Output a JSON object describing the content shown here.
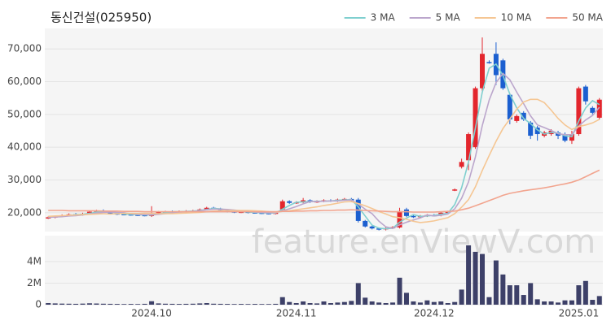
{
  "chart_data": [
    {
      "type": "candlestick",
      "title": "동신건설(025950)",
      "watermark": "feature.enViewV.com",
      "up_color": "#e3262d",
      "down_color": "#1b5fd0",
      "legend": "top-right",
      "grid": true,
      "ylim": [
        14250,
        76250
      ],
      "yticks": [
        {
          "value": 20000,
          "label": "20,000"
        },
        {
          "value": 30000,
          "label": "30,000"
        },
        {
          "value": 40000,
          "label": "40,000"
        },
        {
          "value": 50000,
          "label": "50,000"
        },
        {
          "value": 60000,
          "label": "60,000"
        },
        {
          "value": 70000,
          "label": "70,000"
        }
      ],
      "open": [
        18400,
        18600,
        18900,
        19200,
        19600,
        19400,
        19800,
        20300,
        20700,
        20400,
        19800,
        19600,
        19500,
        19400,
        19300,
        19000,
        19900,
        20200,
        20400,
        20300,
        20400,
        20500,
        20700,
        21000,
        21500,
        21200,
        20800,
        20400,
        20200,
        20300,
        20100,
        20000,
        19900,
        19800,
        21000,
        23500,
        23000,
        23200,
        23800,
        23300,
        23500,
        23800,
        23600,
        24000,
        24200,
        24000,
        17500,
        15800,
        15200,
        14900,
        15300,
        15500,
        21000,
        19000,
        18700,
        19000,
        19300,
        19200,
        20000,
        26900,
        34000,
        36000,
        40000,
        58000,
        66000,
        68500,
        66500,
        56000,
        48000,
        50500,
        47500,
        46000,
        43500,
        44000,
        44500,
        44000,
        42000,
        44000,
        58500,
        52000,
        49000
      ],
      "high": [
        18900,
        19200,
        19500,
        19800,
        19900,
        20000,
        20600,
        20900,
        21000,
        20700,
        20100,
        19900,
        19800,
        19700,
        19600,
        22000,
        20500,
        20600,
        20700,
        20700,
        20800,
        20900,
        21300,
        21800,
        21800,
        21500,
        21100,
        20700,
        20600,
        20600,
        20400,
        20300,
        20200,
        20300,
        24000,
        23800,
        23500,
        24500,
        24100,
        23800,
        24100,
        24100,
        24300,
        24500,
        24500,
        24500,
        17800,
        16100,
        15500,
        15600,
        15900,
        21500,
        21500,
        19300,
        19300,
        19600,
        19600,
        20300,
        20600,
        27400,
        36500,
        44500,
        58500,
        73500,
        66500,
        72000,
        67000,
        56500,
        50000,
        51000,
        48000,
        46500,
        45000,
        45500,
        45000,
        44500,
        45000,
        58500,
        59000,
        52500,
        55000
      ],
      "low": [
        18100,
        18300,
        18600,
        18900,
        19100,
        19100,
        19500,
        20000,
        20100,
        19500,
        19300,
        19200,
        19100,
        19000,
        18900,
        18700,
        19600,
        19900,
        20000,
        20000,
        20100,
        20200,
        20400,
        20700,
        21000,
        20500,
        20100,
        19900,
        19900,
        19800,
        19700,
        19600,
        19500,
        19500,
        20700,
        22700,
        22700,
        22900,
        23000,
        23000,
        23200,
        23300,
        23300,
        23700,
        23500,
        17000,
        15500,
        14900,
        14600,
        14600,
        15000,
        15200,
        18700,
        18400,
        18400,
        18700,
        18900,
        18900,
        19700,
        26600,
        33500,
        33000,
        39500,
        56500,
        65500,
        59000,
        57500,
        47000,
        47500,
        48000,
        42500,
        42000,
        43000,
        43500,
        42500,
        41500,
        41000,
        43500,
        53000,
        50000,
        48500
      ],
      "close": [
        18600,
        18900,
        19200,
        19500,
        19400,
        19700,
        20300,
        20600,
        20400,
        19800,
        19600,
        19500,
        19400,
        19300,
        19200,
        19400,
        20200,
        20300,
        20300,
        20400,
        20500,
        20600,
        21000,
        21500,
        21300,
        20800,
        20400,
        20200,
        20300,
        20100,
        20000,
        19900,
        19800,
        20000,
        23500,
        23000,
        23200,
        23800,
        23300,
        23500,
        23800,
        23600,
        24000,
        24200,
        23800,
        17500,
        15800,
        15200,
        14900,
        15300,
        15600,
        20500,
        19000,
        18700,
        19000,
        19300,
        19200,
        20000,
        20300,
        27100,
        35500,
        44000,
        58000,
        68500,
        65800,
        62000,
        58000,
        48500,
        49500,
        48500,
        43500,
        44000,
        44500,
        45000,
        43500,
        42000,
        44000,
        58000,
        54000,
        50500,
        54500
      ],
      "series": [
        {
          "name": "3 MA",
          "color": "#7fcfcf",
          "values": [
            18600,
            18800,
            18900,
            19200,
            19400,
            19500,
            19800,
            20200,
            20400,
            20300,
            19900,
            19600,
            19500,
            19400,
            19300,
            19300,
            19600,
            20000,
            20300,
            20300,
            20400,
            20500,
            20700,
            21000,
            21300,
            21200,
            20800,
            20500,
            20300,
            20200,
            20100,
            20000,
            19900,
            19900,
            21100,
            22200,
            23200,
            23300,
            23400,
            23500,
            23500,
            23600,
            23800,
            23900,
            24000,
            21800,
            19000,
            16200,
            15300,
            15100,
            15300,
            17100,
            18400,
            19400,
            18900,
            19000,
            19200,
            19500,
            19800,
            22500,
            27600,
            35500,
            45800,
            56800,
            64100,
            65400,
            61900,
            56200,
            52000,
            48800,
            47200,
            45300,
            44000,
            44500,
            44300,
            43500,
            43200,
            48000,
            52000,
            54200,
            53000
          ]
        },
        {
          "name": "5 MA",
          "color": "#bba6cc",
          "values": [
            18600,
            18700,
            18800,
            19000,
            19100,
            19300,
            19600,
            19900,
            20100,
            20200,
            20100,
            20000,
            19700,
            19500,
            19400,
            19400,
            19500,
            19700,
            19900,
            20100,
            20300,
            20400,
            20600,
            20900,
            21100,
            21100,
            21000,
            20800,
            20600,
            20400,
            20200,
            20100,
            20000,
            20000,
            20600,
            21200,
            21900,
            22700,
            23400,
            23400,
            23500,
            23600,
            23600,
            23800,
            23900,
            22600,
            21100,
            19700,
            17400,
            15700,
            15200,
            16300,
            17100,
            17800,
            18400,
            19300,
            19000,
            19200,
            19600,
            21200,
            24400,
            29400,
            37000,
            46600,
            54400,
            59700,
            62500,
            60600,
            56800,
            53300,
            49600,
            46800,
            46000,
            45100,
            44100,
            43800,
            43800,
            46500,
            48300,
            49700,
            52200
          ]
        },
        {
          "name": "10 MA",
          "color": "#f5c693",
          "values": [
            18900,
            19000,
            19100,
            19200,
            19300,
            19400,
            19500,
            19600,
            19700,
            19600,
            19700,
            19800,
            19800,
            19800,
            19800,
            19800,
            19700,
            19700,
            19700,
            19800,
            19900,
            20000,
            20100,
            20300,
            20500,
            20600,
            20700,
            20700,
            20700,
            20700,
            20600,
            20500,
            20300,
            20200,
            20400,
            20600,
            20900,
            21200,
            21500,
            21800,
            22200,
            22500,
            22900,
            23300,
            23400,
            22800,
            22100,
            21300,
            20400,
            19600,
            18800,
            18500,
            18000,
            17400,
            17000,
            17200,
            17500,
            18000,
            18500,
            19700,
            21700,
            24000,
            27900,
            32900,
            37500,
            41800,
            45700,
            48600,
            51600,
            53800,
            54600,
            54600,
            53600,
            51300,
            48800,
            46800,
            45400,
            46300,
            46800,
            47400,
            48500
          ]
        },
        {
          "name": "50 MA",
          "color": "#f2a48e",
          "values": [
            20700,
            20700,
            20700,
            20600,
            20600,
            20600,
            20600,
            20600,
            20500,
            20500,
            20500,
            20400,
            20400,
            20400,
            20300,
            20300,
            20300,
            20300,
            20300,
            20300,
            20300,
            20300,
            20300,
            20300,
            20300,
            20300,
            20300,
            20300,
            20300,
            20300,
            20300,
            20300,
            20300,
            20300,
            20400,
            20400,
            20500,
            20500,
            20600,
            20600,
            20700,
            20700,
            20800,
            20800,
            20900,
            20800,
            20700,
            20600,
            20500,
            20400,
            20300,
            20300,
            20300,
            20200,
            20200,
            20200,
            20200,
            20300,
            20400,
            20500,
            20900,
            21400,
            22100,
            22900,
            23700,
            24500,
            25300,
            25900,
            26300,
            26700,
            27000,
            27300,
            27600,
            28000,
            28400,
            28800,
            29300,
            30000,
            31000,
            32000,
            33000
          ]
        }
      ]
    },
    {
      "type": "bar",
      "color": "#3d4068",
      "grid": true,
      "categories": [
        null,
        null,
        null,
        null,
        null,
        null,
        null,
        null,
        null,
        null,
        null,
        null,
        null,
        null,
        null,
        "2024.10",
        null,
        null,
        null,
        null,
        null,
        null,
        null,
        null,
        null,
        null,
        null,
        null,
        null,
        null,
        null,
        null,
        null,
        null,
        null,
        null,
        "2024.11",
        null,
        null,
        null,
        null,
        null,
        null,
        null,
        null,
        null,
        null,
        null,
        null,
        null,
        null,
        null,
        null,
        null,
        null,
        null,
        "2024.12",
        null,
        null,
        null,
        null,
        null,
        null,
        null,
        null,
        null,
        null,
        null,
        null,
        null,
        null,
        null,
        null,
        null,
        null,
        null,
        null,
        "2025.01",
        null,
        null,
        null
      ],
      "ylim": [
        0,
        6400000
      ],
      "yticks": [
        0,
        {
          "value": 2000000,
          "label": "2M"
        },
        {
          "value": 4000000,
          "label": "4M"
        }
      ],
      "values": [
        150000,
        120000,
        100000,
        90000,
        80000,
        100000,
        130000,
        110000,
        90000,
        80000,
        70000,
        60000,
        70000,
        60000,
        80000,
        320000,
        120000,
        90000,
        80000,
        70000,
        80000,
        90000,
        120000,
        150000,
        90000,
        80000,
        70000,
        60000,
        70000,
        60000,
        70000,
        60000,
        60000,
        80000,
        700000,
        250000,
        150000,
        300000,
        150000,
        120000,
        300000,
        150000,
        200000,
        250000,
        350000,
        2000000,
        650000,
        300000,
        200000,
        150000,
        200000,
        2500000,
        1100000,
        300000,
        200000,
        400000,
        250000,
        300000,
        150000,
        250000,
        1400000,
        5500000,
        4900000,
        4700000,
        700000,
        4100000,
        2800000,
        1800000,
        1800000,
        900000,
        2000000,
        500000,
        300000,
        300000,
        200000,
        400000,
        400000,
        1800000,
        2200000,
        450000,
        800000
      ]
    }
  ]
}
